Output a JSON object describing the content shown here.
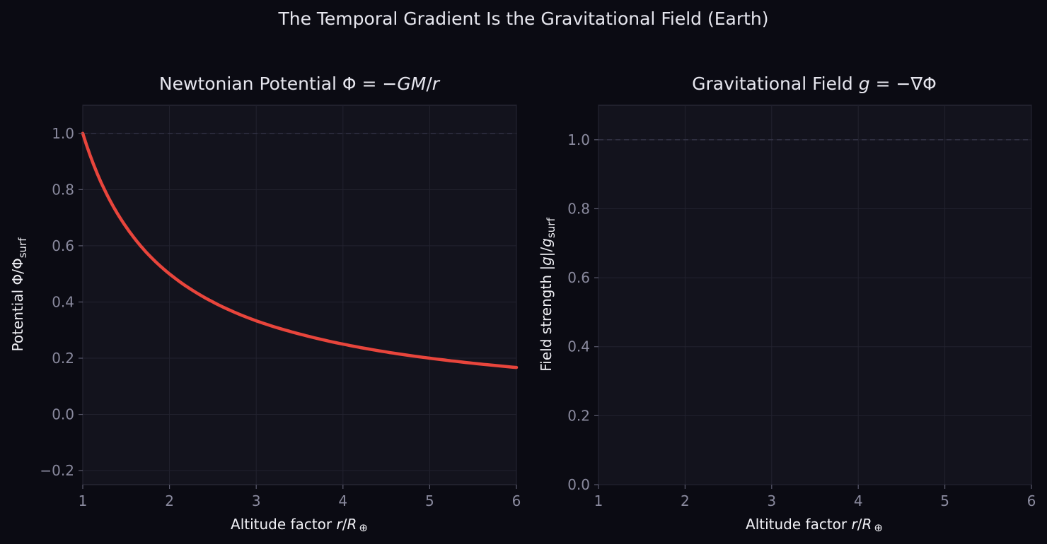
{
  "figure": {
    "suptitle": "The Temporal Gradient Is the Gravitational Field (Earth)"
  },
  "chart_data": [
    {
      "type": "line",
      "title": "Newtonian Potential Φ = −GM/r",
      "title_parts": [
        "Newtonian Potential Φ = −",
        "GM",
        "/",
        "r"
      ],
      "xlabel": "Altitude factor  r/R⊕",
      "xlabel_parts": [
        "Altitude factor  ",
        "r",
        "/",
        "R",
        "⊕"
      ],
      "ylabel": "Potential  Φ/Φsurf",
      "ylabel_parts": [
        "Potential  Φ/Φ",
        "surf"
      ],
      "xlim": [
        1,
        6
      ],
      "ylim": [
        -0.25,
        1.1
      ],
      "xticks": [
        "1",
        "2",
        "3",
        "4",
        "5",
        "6"
      ],
      "yticks": [
        "−0.2",
        "0.0",
        "0.2",
        "0.4",
        "0.6",
        "0.8",
        "1.0"
      ],
      "ytick_values": [
        -0.2,
        0.0,
        0.2,
        0.4,
        0.6,
        0.8,
        1.0
      ],
      "reference_line_y": 1.0,
      "grid": true,
      "series": [
        {
          "color": "#e8453c",
          "x": [
            1.0,
            1.25,
            1.5,
            1.75,
            2.0,
            2.5,
            3.0,
            3.5,
            4.0,
            4.5,
            5.0,
            5.5,
            6.0
          ],
          "y": [
            1.0,
            0.8,
            0.667,
            0.571,
            0.5,
            0.4,
            0.333,
            0.286,
            0.25,
            0.222,
            0.2,
            0.182,
            0.167
          ]
        }
      ]
    },
    {
      "type": "line",
      "title": "Gravitational Field g = −∇Φ",
      "title_parts": [
        "Gravitational Field ",
        "g",
        " = −∇Φ"
      ],
      "xlabel": "Altitude factor  r/R⊕",
      "xlabel_parts": [
        "Altitude factor  ",
        "r",
        "/",
        "R",
        "⊕"
      ],
      "ylabel": "Field strength  |g|/gsurf",
      "ylabel_parts": [
        "Field strength  |",
        "g",
        "|/",
        "g",
        "surf"
      ],
      "xlim": [
        1,
        6
      ],
      "ylim": [
        0.0,
        1.1
      ],
      "xticks": [
        "1",
        "2",
        "3",
        "4",
        "5",
        "6"
      ],
      "yticks": [
        "0.0",
        "0.2",
        "0.4",
        "0.6",
        "0.8",
        "1.0"
      ],
      "ytick_values": [
        0.0,
        0.2,
        0.4,
        0.6,
        0.8,
        1.0
      ],
      "reference_line_y": 1.0,
      "grid": true,
      "series": []
    }
  ]
}
